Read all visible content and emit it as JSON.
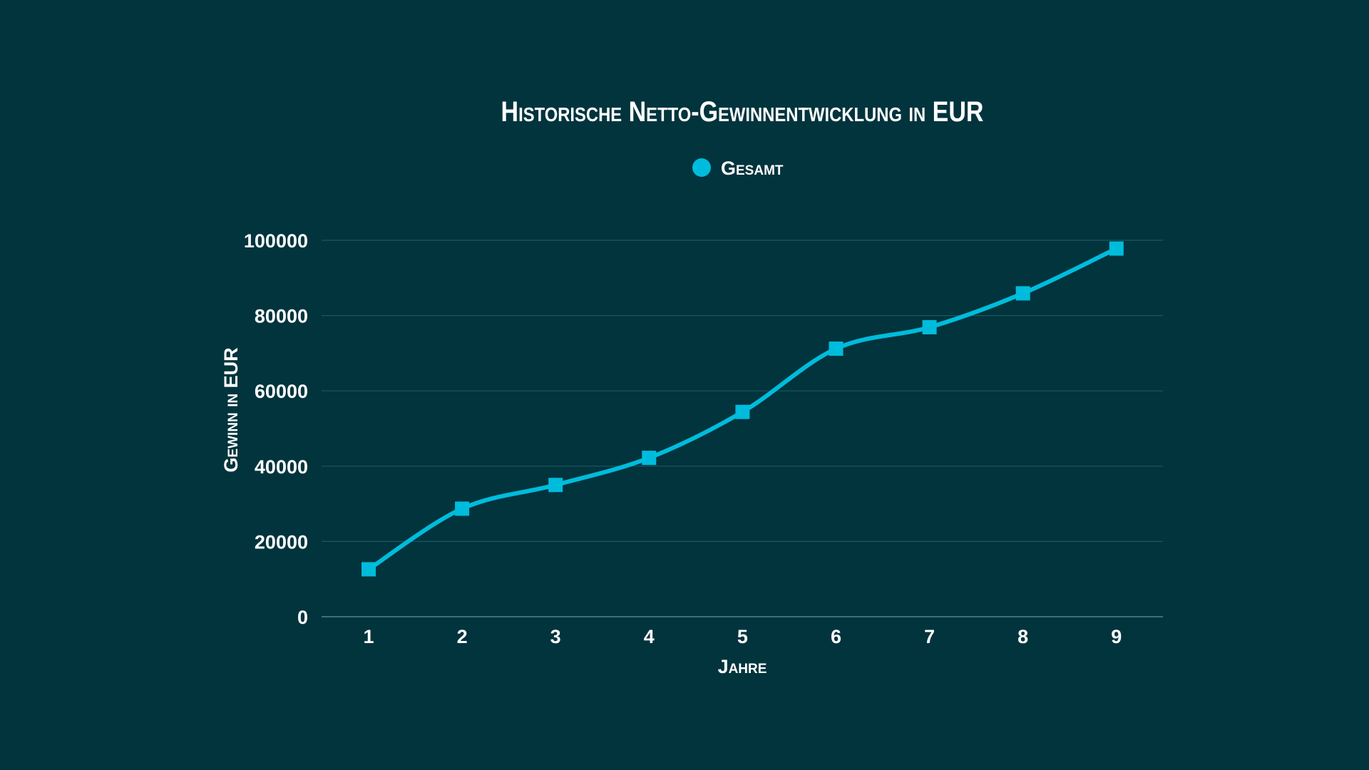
{
  "chart_data": {
    "type": "line",
    "title": "Historische Netto-Gewinnentwicklung in EUR",
    "xlabel": "Jahre",
    "ylabel": "Gewinn in EUR",
    "categories": [
      "1",
      "2",
      "3",
      "4",
      "5",
      "6",
      "7",
      "8",
      "9"
    ],
    "series": [
      {
        "name": "Gesamt",
        "color": "#00bcdc",
        "values": [
          12600,
          28700,
          35000,
          42200,
          54400,
          71200,
          76900,
          85900,
          97800
        ]
      }
    ],
    "ylim": [
      0,
      100000
    ],
    "yticks": [
      "0",
      "20000",
      "40000",
      "60000",
      "80000",
      "100000"
    ],
    "grid": true,
    "legend": "top-center",
    "marker": "square",
    "smooth": true
  }
}
